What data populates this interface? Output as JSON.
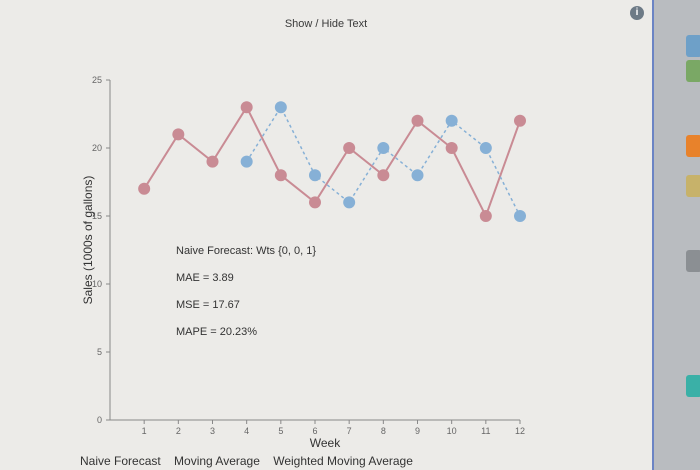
{
  "toolbar": {
    "toggle_label": "Show / Hide Text"
  },
  "stats": {
    "title": "Naive Forecast: Wts {0, 0, 1}",
    "mae": "MAE = 3.89",
    "mse": "MSE = 17.67",
    "mape": "MAPE = 20.23%"
  },
  "tabs": [
    "Naive Forecast",
    "Moving Average",
    "Weighted Moving Average"
  ],
  "colors": {
    "actual": "#c98b94",
    "forecast": "#86b0d6",
    "accent": "#6b84c4"
  },
  "chart_data": {
    "type": "line",
    "xlabel": "Week",
    "ylabel": "Sales (1000s of gallons)",
    "xlim": [
      0,
      12
    ],
    "ylim": [
      0,
      25
    ],
    "x": [
      1,
      2,
      3,
      4,
      5,
      6,
      7,
      8,
      9,
      10,
      11,
      12
    ],
    "yticks": [
      0,
      5,
      10,
      15,
      20,
      25
    ],
    "series": [
      {
        "values": [
          17,
          21,
          19,
          23,
          18,
          16,
          20,
          18,
          22,
          20,
          15,
          22
        ],
        "style": "solid",
        "color": "#c98b94"
      },
      {
        "values": [
          null,
          null,
          null,
          19,
          23,
          18,
          16,
          20,
          18,
          22,
          20,
          15
        ],
        "style": "dotted",
        "color": "#86b0d6"
      }
    ]
  }
}
